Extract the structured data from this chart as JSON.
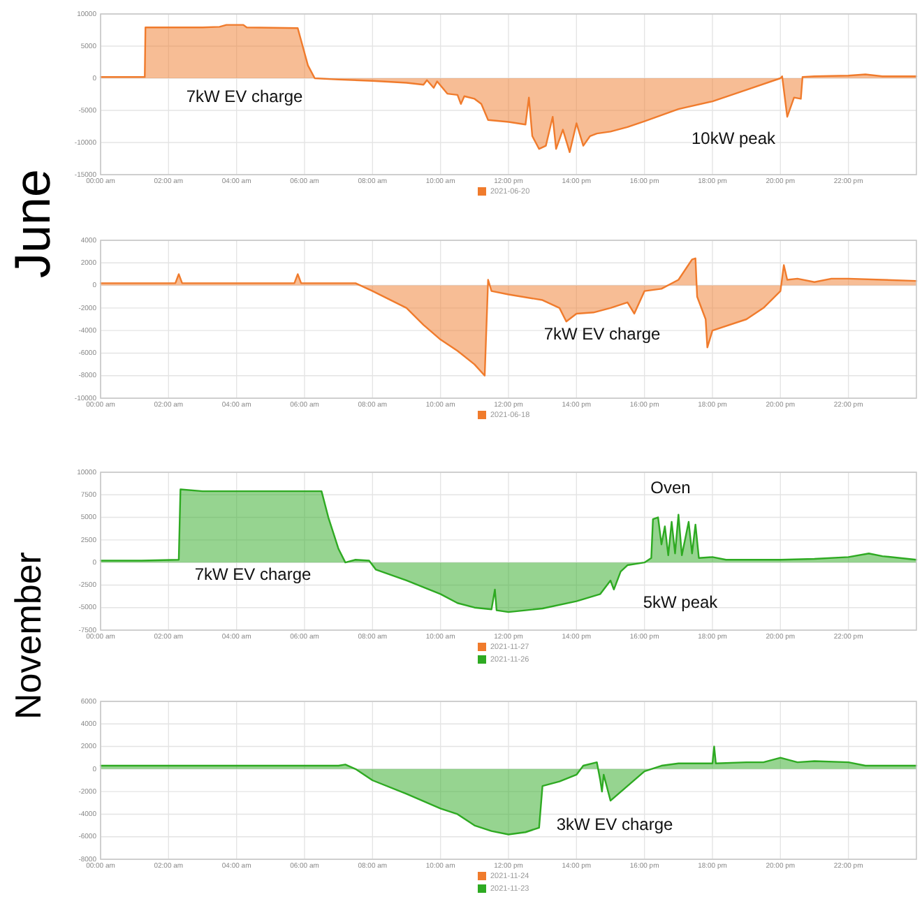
{
  "chart_data": [
    {
      "type": "area",
      "annotations": [
        "June",
        "7kW EV charge",
        "10kW peak"
      ],
      "x": [
        0,
        1.3,
        1.32,
        2,
        3,
        3.5,
        3.7,
        4.2,
        4.3,
        5.8,
        6.1,
        6.3,
        7,
        8,
        9,
        9.5,
        9.6,
        9.8,
        9.9,
        10.2,
        10.5,
        10.6,
        10.7,
        11,
        11.2,
        11.4,
        12,
        12.5,
        12.6,
        12.7,
        12.9,
        13.1,
        13.3,
        13.4,
        13.6,
        13.8,
        14,
        14.2,
        14.4,
        14.6,
        15,
        15.5,
        16,
        17,
        18,
        19,
        20,
        20.05,
        20.2,
        20.4,
        20.6,
        20.65,
        21,
        22,
        22.5,
        23,
        24
      ],
      "series": [
        {
          "name": "2021-06-20",
          "color": "#f07b2c",
          "values": [
            200,
            200,
            7900,
            7900,
            7900,
            8000,
            8300,
            8300,
            7900,
            7800,
            2000,
            0,
            -200,
            -400,
            -700,
            -1000,
            -300,
            -1500,
            -500,
            -2400,
            -2600,
            -4000,
            -2800,
            -3200,
            -4000,
            -6500,
            -6800,
            -7200,
            -3000,
            -9000,
            -11000,
            -10500,
            -6000,
            -11000,
            -8000,
            -11500,
            -7000,
            -10500,
            -9000,
            -8600,
            -8300,
            -7600,
            -6700,
            -4800,
            -3600,
            -1800,
            0,
            300,
            -6000,
            -3000,
            -3200,
            200,
            300,
            400,
            600,
            300,
            300
          ]
        }
      ],
      "xlim": [
        0,
        24
      ],
      "xticks": [
        {
          "value": 0,
          "label": "00:00 am"
        },
        {
          "value": 2,
          "label": "02:00 am"
        },
        {
          "value": 4,
          "label": "04:00 am"
        },
        {
          "value": 6,
          "label": "06:00 am"
        },
        {
          "value": 8,
          "label": "08:00 am"
        },
        {
          "value": 10,
          "label": "10:00 am"
        },
        {
          "value": 12,
          "label": "12:00 pm"
        },
        {
          "value": 14,
          "label": "14:00 pm"
        },
        {
          "value": 16,
          "label": "16:00 pm"
        },
        {
          "value": 18,
          "label": "18:00 pm"
        },
        {
          "value": 20,
          "label": "20:00 pm"
        },
        {
          "value": 22,
          "label": "22:00 pm"
        }
      ],
      "ylim": [
        -15000,
        10000
      ],
      "yticks": [
        -15000,
        -10000,
        -5000,
        0,
        5000,
        10000
      ],
      "grid": true,
      "legend": "bottom"
    },
    {
      "type": "area",
      "annotations": [
        "7kW EV charge"
      ],
      "x": [
        0,
        1,
        2.2,
        2.3,
        2.4,
        3,
        4,
        5,
        5.7,
        5.8,
        5.9,
        7,
        7.5,
        8,
        9,
        9.5,
        10,
        10.5,
        11,
        11.3,
        11.4,
        11.5,
        12,
        13,
        13.5,
        13.7,
        14,
        14.5,
        15,
        15.5,
        15.7,
        16,
        16.5,
        17,
        17.4,
        17.5,
        17.55,
        17.8,
        17.85,
        18,
        19,
        19.5,
        20,
        20.1,
        20.2,
        20.5,
        21,
        21.5,
        22,
        23,
        24
      ],
      "series": [
        {
          "name": "2021-06-18",
          "color": "#f07b2c",
          "values": [
            200,
            200,
            200,
            1000,
            200,
            200,
            200,
            200,
            200,
            1000,
            200,
            200,
            200,
            -500,
            -2000,
            -3500,
            -4800,
            -5800,
            -7000,
            -8000,
            500,
            -500,
            -800,
            -1300,
            -2000,
            -3200,
            -2500,
            -2400,
            -2000,
            -1500,
            -2500,
            -500,
            -300,
            500,
            2300,
            2400,
            -1000,
            -3000,
            -5500,
            -4000,
            -3000,
            -2000,
            -500,
            1800,
            500,
            600,
            300,
            600,
            600,
            500,
            400
          ]
        }
      ],
      "xlim": [
        0,
        24
      ],
      "xticks": [
        {
          "value": 0,
          "label": "00:00 am"
        },
        {
          "value": 2,
          "label": "02:00 am"
        },
        {
          "value": 4,
          "label": "04:00 am"
        },
        {
          "value": 6,
          "label": "06:00 am"
        },
        {
          "value": 8,
          "label": "08:00 am"
        },
        {
          "value": 10,
          "label": "10:00 am"
        },
        {
          "value": 12,
          "label": "12:00 pm"
        },
        {
          "value": 14,
          "label": "14:00 pm"
        },
        {
          "value": 16,
          "label": "16:00 pm"
        },
        {
          "value": 18,
          "label": "18:00 pm"
        },
        {
          "value": 20,
          "label": "20:00 pm"
        },
        {
          "value": 22,
          "label": "22:00 pm"
        }
      ],
      "ylim": [
        -10000,
        4000
      ],
      "yticks": [
        -10000,
        -8000,
        -6000,
        -4000,
        -2000,
        0,
        2000,
        4000
      ],
      "grid": true,
      "legend": "bottom"
    },
    {
      "type": "area",
      "annotations": [
        "November",
        "7kW EV charge",
        "Oven",
        "5kW peak"
      ],
      "x": [
        0,
        1.2,
        2.3,
        2.35,
        3,
        4,
        5,
        6.5,
        6.7,
        7,
        7.2,
        7.5,
        7.9,
        8.1,
        9,
        10,
        10.5,
        11,
        11.5,
        11.6,
        11.65,
        12,
        12.5,
        13,
        14,
        14.7,
        15,
        15.1,
        15.3,
        15.5,
        16,
        16.2,
        16.25,
        16.4,
        16.5,
        16.6,
        16.7,
        16.8,
        16.9,
        17,
        17.1,
        17.3,
        17.4,
        17.5,
        17.6,
        18,
        18.4,
        20,
        21,
        22,
        22.6,
        23,
        24
      ],
      "series": [
        {
          "name": "2021-11-27",
          "color": "#f07b2c",
          "values": [
            null,
            null,
            null,
            null,
            null,
            null,
            null,
            null,
            null,
            null,
            null,
            null,
            null,
            null,
            null,
            null,
            null,
            null,
            null,
            null,
            null,
            null,
            null,
            null,
            null,
            null,
            null,
            null,
            null,
            null,
            null,
            null,
            null,
            null,
            null,
            null,
            null,
            null,
            null,
            null,
            null,
            null,
            null,
            null,
            null,
            null,
            null,
            null,
            null,
            null,
            null,
            null,
            null
          ]
        },
        {
          "name": "2021-11-26",
          "color": "#2eaa22",
          "values": [
            200,
            200,
            300,
            8100,
            7900,
            7900,
            7900,
            7900,
            5000,
            1500,
            0,
            300,
            200,
            -800,
            -2000,
            -3500,
            -4500,
            -5000,
            -5200,
            -3000,
            -5300,
            -5500,
            -5300,
            -5100,
            -4300,
            -3500,
            -2000,
            -3000,
            -1000,
            -300,
            0,
            500,
            4800,
            5000,
            2000,
            4000,
            800,
            4500,
            1000,
            5300,
            800,
            4500,
            1000,
            4200,
            500,
            600,
            300,
            300,
            400,
            600,
            1000,
            700,
            300
          ]
        }
      ],
      "xlim": [
        0,
        24
      ],
      "xticks": [
        {
          "value": 0,
          "label": "00:00 am"
        },
        {
          "value": 2,
          "label": "02:00 am"
        },
        {
          "value": 4,
          "label": "04:00 am"
        },
        {
          "value": 6,
          "label": "06:00 am"
        },
        {
          "value": 8,
          "label": "08:00 am"
        },
        {
          "value": 10,
          "label": "10:00 am"
        },
        {
          "value": 12,
          "label": "12:00 pm"
        },
        {
          "value": 14,
          "label": "14:00 pm"
        },
        {
          "value": 16,
          "label": "16:00 pm"
        },
        {
          "value": 18,
          "label": "18:00 pm"
        },
        {
          "value": 20,
          "label": "20:00 pm"
        },
        {
          "value": 22,
          "label": "22:00 pm"
        }
      ],
      "ylim": [
        -7500,
        10000
      ],
      "yticks": [
        -7500,
        -5000,
        -2500,
        0,
        2500,
        5000,
        7500,
        10000
      ],
      "grid": true,
      "legend": "bottom"
    },
    {
      "type": "area",
      "annotations": [
        "3kW EV charge"
      ],
      "x": [
        0,
        2,
        4,
        6,
        7,
        7.2,
        7.5,
        8,
        9,
        10,
        10.5,
        11,
        11.5,
        12,
        12.5,
        12.9,
        13,
        13.5,
        14,
        14.2,
        14.6,
        14.7,
        14.75,
        14.8,
        15,
        15.5,
        16,
        16.5,
        17,
        18,
        18.05,
        18.1,
        19,
        19.5,
        20,
        20.5,
        21,
        22,
        22.5,
        24
      ],
      "series": [
        {
          "name": "2021-11-24",
          "color": "#f07b2c",
          "values": [
            null,
            null,
            null,
            null,
            null,
            null,
            null,
            null,
            null,
            null,
            null,
            null,
            null,
            null,
            null,
            null,
            null,
            null,
            null,
            null,
            null,
            null,
            null,
            null,
            null,
            null,
            null,
            null,
            null,
            null,
            null,
            null,
            null,
            null,
            null,
            null,
            null,
            null,
            null,
            null
          ]
        },
        {
          "name": "2021-11-23",
          "color": "#2eaa22",
          "values": [
            300,
            300,
            300,
            300,
            300,
            400,
            0,
            -1000,
            -2200,
            -3500,
            -4000,
            -5000,
            -5500,
            -5800,
            -5600,
            -5200,
            -1500,
            -1100,
            -500,
            300,
            600,
            -1000,
            -2000,
            -500,
            -2800,
            -1500,
            -200,
            300,
            500,
            500,
            2000,
            500,
            600,
            600,
            1000,
            600,
            700,
            600,
            300,
            300
          ]
        }
      ],
      "xlim": [
        0,
        24
      ],
      "xticks": [
        {
          "value": 0,
          "label": "00:00 am"
        },
        {
          "value": 2,
          "label": "02:00 am"
        },
        {
          "value": 4,
          "label": "04:00 am"
        },
        {
          "value": 6,
          "label": "06:00 am"
        },
        {
          "value": 8,
          "label": "08:00 am"
        },
        {
          "value": 10,
          "label": "10:00 am"
        },
        {
          "value": 12,
          "label": "12:00 pm"
        },
        {
          "value": 14,
          "label": "14:00 pm"
        },
        {
          "value": 16,
          "label": "16:00 pm"
        },
        {
          "value": 18,
          "label": "18:00 pm"
        },
        {
          "value": 20,
          "label": "20:00 pm"
        },
        {
          "value": 22,
          "label": "22:00 pm"
        }
      ],
      "ylim": [
        -8000,
        6000
      ],
      "yticks": [
        -8000,
        -6000,
        -4000,
        -2000,
        0,
        2000,
        4000,
        6000
      ],
      "grid": true,
      "legend": "bottom"
    }
  ]
}
